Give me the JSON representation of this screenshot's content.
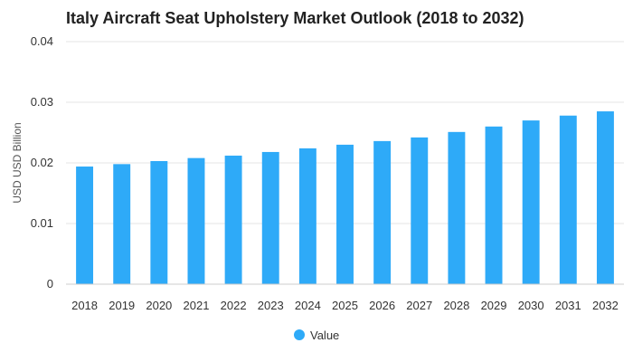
{
  "chart_data": {
    "type": "bar",
    "title": "Italy Aircraft Seat Upholstery Market Outlook (2018 to 2032)",
    "xlabel": "",
    "ylabel": "USD USD Billion",
    "categories": [
      "2018",
      "2019",
      "2020",
      "2021",
      "2022",
      "2023",
      "2024",
      "2025",
      "2026",
      "2027",
      "2028",
      "2029",
      "2030",
      "2031",
      "2032"
    ],
    "series": [
      {
        "name": "Value",
        "values": [
          0.0194,
          0.0198,
          0.0203,
          0.0208,
          0.0212,
          0.0218,
          0.0224,
          0.023,
          0.0236,
          0.0242,
          0.0251,
          0.026,
          0.027,
          0.0278,
          0.0285
        ]
      }
    ],
    "ylim": [
      0,
      0.04
    ],
    "yticks": [
      "0",
      "0.01",
      "0.02",
      "0.03",
      "0.04"
    ],
    "grid": true,
    "legend_position": "bottom-center",
    "colors": {
      "bar": "#2eaaf8",
      "grid": "#e6e6e6",
      "axis": "#cccccc"
    }
  }
}
